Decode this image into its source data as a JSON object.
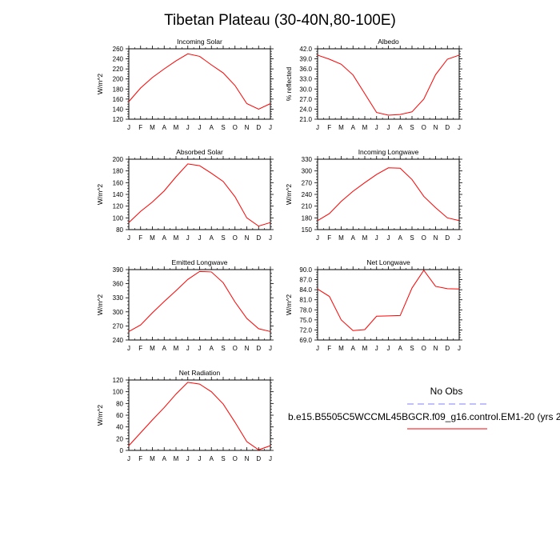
{
  "figure": {
    "title": "Tibetan Plateau (30-40N,80-100E)",
    "legend": {
      "obs_label": "No Obs",
      "model_label": "b.e15.B5505C5WCCML45BGCR.f09_g16.control.EM1-20 (yrs 2",
      "obs_color": "#8080ff",
      "model_color": "#ff0000"
    }
  },
  "chart_data": [
    {
      "type": "line",
      "title": "Incoming Solar",
      "ylabel": "W/m^2",
      "categories": [
        "J",
        "F",
        "M",
        "A",
        "M",
        "J",
        "J",
        "A",
        "S",
        "O",
        "N",
        "D",
        "J"
      ],
      "ylim": [
        120,
        260
      ],
      "yticks": [
        120,
        140,
        160,
        180,
        200,
        220,
        240,
        260
      ],
      "yticklabels": [
        "120",
        "140",
        "160",
        "180",
        "200",
        "220",
        "240",
        "260"
      ],
      "values": [
        155,
        182,
        203,
        220,
        236,
        250,
        245,
        228,
        212,
        187,
        151,
        140,
        151
      ],
      "color": "#ff0000"
    },
    {
      "type": "line",
      "title": "Albedo",
      "ylabel": "% reflected",
      "categories": [
        "J",
        "F",
        "M",
        "A",
        "M",
        "J",
        "J",
        "A",
        "S",
        "O",
        "N",
        "D",
        "J"
      ],
      "ylim": [
        21,
        42
      ],
      "yticks": [
        21,
        24,
        27,
        30,
        33,
        36,
        39,
        42
      ],
      "yticklabels": [
        "21.0",
        "24.0",
        "27.0",
        "30.0",
        "33.0",
        "36.0",
        "39.0",
        "42.0"
      ],
      "values": [
        40.1,
        38.9,
        37.4,
        34.2,
        28.6,
        23.0,
        22.2,
        22.4,
        23.2,
        27.0,
        34.3,
        38.9,
        40.1
      ],
      "color": "#ff0000"
    },
    {
      "type": "line",
      "title": "Absorbed Solar",
      "ylabel": "W/m^2",
      "categories": [
        "J",
        "F",
        "M",
        "A",
        "M",
        "J",
        "J",
        "A",
        "S",
        "O",
        "N",
        "D",
        "J"
      ],
      "ylim": [
        80,
        200
      ],
      "yticks": [
        80,
        100,
        120,
        140,
        160,
        180,
        200
      ],
      "yticklabels": [
        "80",
        "100",
        "120",
        "140",
        "160",
        "180",
        "200"
      ],
      "values": [
        92,
        111,
        127,
        146,
        170,
        192,
        189,
        176,
        162,
        136,
        100,
        86,
        92
      ],
      "color": "#ff0000"
    },
    {
      "type": "line",
      "title": "Incoming Longwave",
      "ylabel": "W/m^2",
      "categories": [
        "J",
        "F",
        "M",
        "A",
        "M",
        "J",
        "J",
        "A",
        "S",
        "O",
        "N",
        "D",
        "J"
      ],
      "ylim": [
        150,
        330
      ],
      "yticks": [
        150,
        180,
        210,
        240,
        270,
        300,
        330
      ],
      "yticklabels": [
        "150",
        "180",
        "210",
        "240",
        "270",
        "300",
        "330"
      ],
      "values": [
        173,
        191,
        222,
        248,
        270,
        291,
        308,
        307,
        278,
        235,
        206,
        180,
        173
      ],
      "color": "#ff0000"
    },
    {
      "type": "line",
      "title": "Emitted Longwave",
      "ylabel": "W/m^2",
      "categories": [
        "J",
        "F",
        "M",
        "A",
        "M",
        "J",
        "J",
        "A",
        "S",
        "O",
        "N",
        "D",
        "J"
      ],
      "ylim": [
        240,
        390
      ],
      "yticks": [
        240,
        270,
        300,
        330,
        360,
        390
      ],
      "yticklabels": [
        "240",
        "270",
        "300",
        "330",
        "360",
        "390"
      ],
      "values": [
        258,
        272,
        298,
        322,
        345,
        369,
        386,
        385,
        362,
        321,
        286,
        264,
        258
      ],
      "color": "#ff0000"
    },
    {
      "type": "line",
      "title": "Net Longwave",
      "ylabel": "W/m^2",
      "categories": [
        "J",
        "F",
        "M",
        "A",
        "M",
        "J",
        "J",
        "A",
        "S",
        "O",
        "N",
        "D",
        "J"
      ],
      "ylim": [
        69,
        90
      ],
      "yticks": [
        69,
        72,
        75,
        78,
        81,
        84,
        87,
        90
      ],
      "yticklabels": [
        "69.0",
        "72.0",
        "75.0",
        "78.0",
        "81.0",
        "84.0",
        "87.0",
        "90.0"
      ],
      "values": [
        84.2,
        82.0,
        75.0,
        71.8,
        72.1,
        76.1,
        76.2,
        76.3,
        84.5,
        89.8,
        85.0,
        84.3,
        84.2
      ],
      "color": "#ff0000"
    },
    {
      "type": "line",
      "title": "Net Radiation",
      "ylabel": "W/m^2",
      "categories": [
        "J",
        "F",
        "M",
        "A",
        "M",
        "J",
        "J",
        "A",
        "S",
        "O",
        "N",
        "D",
        "J"
      ],
      "ylim": [
        0,
        120
      ],
      "yticks": [
        0,
        20,
        40,
        60,
        80,
        100,
        120
      ],
      "yticklabels": [
        "0",
        "20",
        "40",
        "60",
        "80",
        "100",
        "120"
      ],
      "values": [
        8,
        30,
        52,
        73,
        96,
        116,
        113,
        100,
        79,
        48,
        15,
        1,
        8
      ],
      "color": "#ff0000"
    }
  ]
}
